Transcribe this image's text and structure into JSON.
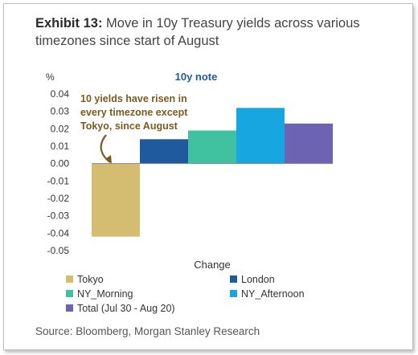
{
  "header": {
    "exhibit_label": "Exhibit 13:",
    "title": "Move in 10y Treasury yields across various timezones since start of August"
  },
  "source": "Source: Bloomberg, Morgan Stanley Research",
  "chart_data": {
    "type": "bar",
    "title": "10y note",
    "ylabel": "%",
    "xlabel": "Change",
    "ylim": [
      -0.05,
      0.04
    ],
    "yticks": [
      "0.04",
      "0.03",
      "0.02",
      "0.01",
      "0.00",
      "-0.01",
      "-0.02",
      "-0.03",
      "-0.04",
      "-0.05"
    ],
    "grid": false,
    "legend_position": "bottom",
    "series": [
      {
        "name": "Tokyo",
        "value": -0.042,
        "color": "#d4bd70"
      },
      {
        "name": "London",
        "value": 0.014,
        "color": "#1f5a9e"
      },
      {
        "name": "NY_Morning",
        "value": 0.019,
        "color": "#40c2a0"
      },
      {
        "name": "NY_Afternoon",
        "value": 0.032,
        "color": "#18a6e0"
      },
      {
        "name": "Total (Jul 30 - Aug 20)",
        "value": 0.023,
        "color": "#6d63b3"
      }
    ],
    "annotation": {
      "lines": [
        "10 yields  have risen in",
        "every timezone except",
        "Tokyo, since August"
      ],
      "color": "#7a5b1e"
    },
    "colors": {
      "axis": "#888888",
      "title": "#1f5a9e"
    }
  }
}
